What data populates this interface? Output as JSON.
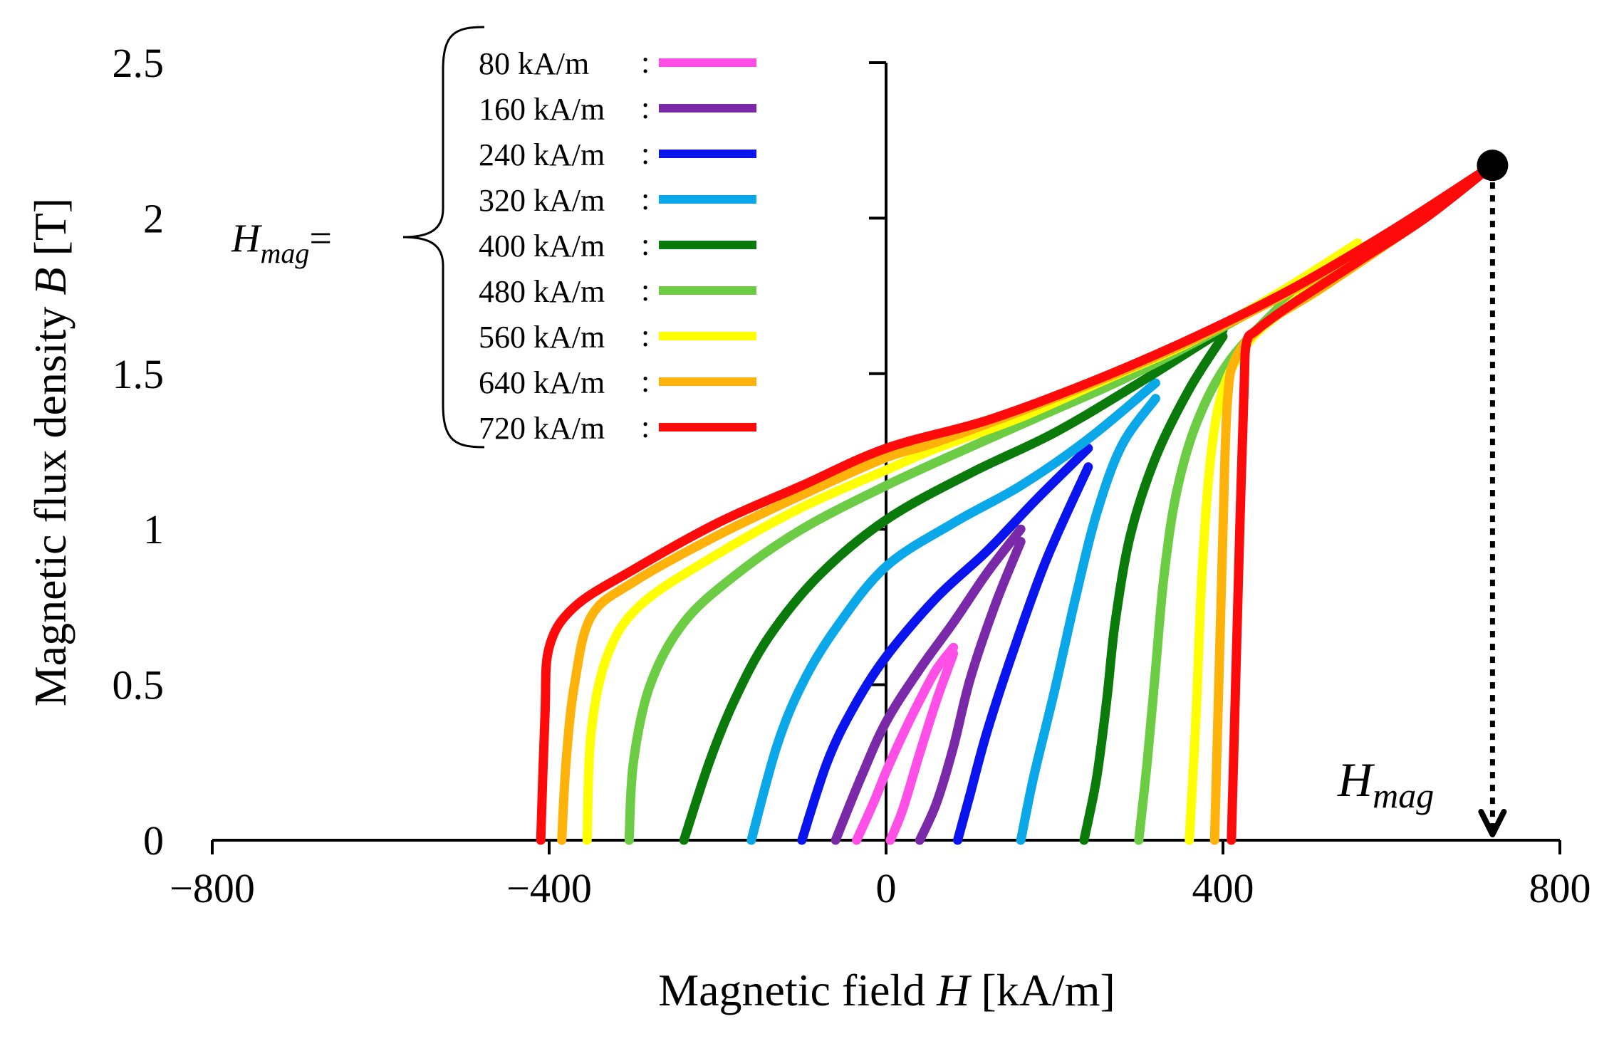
{
  "chart_data": {
    "type": "line",
    "xlabel_prefix": "Magnetic field ",
    "xlabel_var": "H",
    "xlabel_unit": " [kA/m]",
    "ylabel_prefix": "Magnetic flux density ",
    "ylabel_var": "B",
    "ylabel_unit": " [T]",
    "xlim": [
      -800,
      800
    ],
    "ylim": [
      0,
      2.5
    ],
    "xticks": [
      -800,
      -400,
      0,
      400,
      800
    ],
    "xtick_labels": [
      "−800",
      "−400",
      "0",
      "400",
      "800"
    ],
    "yticks": [
      0,
      0.5,
      1,
      1.5,
      2,
      2.5
    ],
    "ytick_labels": [
      "0",
      "0.5",
      "1",
      "1.5",
      "2",
      "2.5"
    ],
    "legend_title_base": "H",
    "legend_title_sub": "mag",
    "legend_title_suffix": "=",
    "annotation_base": "H",
    "annotation_sub": "mag",
    "annotation_point": {
      "x": 720,
      "y": 2.17
    },
    "series": [
      {
        "name": "80 kA/m",
        "sep": ":",
        "color": "#ff4fe6",
        "descending": [
          [
            80,
            0.62
          ],
          [
            60,
            0.55
          ],
          [
            40,
            0.45
          ],
          [
            20,
            0.34
          ],
          [
            0,
            0.22
          ],
          [
            -15,
            0.12
          ],
          [
            -35,
            0
          ]
        ],
        "ascending": [
          [
            5,
            0
          ],
          [
            20,
            0.1
          ],
          [
            40,
            0.28
          ],
          [
            60,
            0.45
          ],
          [
            80,
            0.6
          ]
        ]
      },
      {
        "name": "160 kA/m",
        "sep": ":",
        "color": "#7a2aa8",
        "descending": [
          [
            160,
            1.0
          ],
          [
            120,
            0.86
          ],
          [
            80,
            0.7
          ],
          [
            40,
            0.55
          ],
          [
            0,
            0.38
          ],
          [
            -30,
            0.2
          ],
          [
            -60,
            0
          ]
        ],
        "ascending": [
          [
            40,
            0
          ],
          [
            60,
            0.12
          ],
          [
            80,
            0.3
          ],
          [
            100,
            0.52
          ],
          [
            130,
            0.76
          ],
          [
            160,
            0.96
          ]
        ]
      },
      {
        "name": "240 kA/m",
        "sep": ":",
        "color": "#0a14ee",
        "descending": [
          [
            240,
            1.26
          ],
          [
            180,
            1.1
          ],
          [
            120,
            0.93
          ],
          [
            60,
            0.78
          ],
          [
            0,
            0.59
          ],
          [
            -40,
            0.42
          ],
          [
            -70,
            0.25
          ],
          [
            -100,
            0
          ]
        ],
        "ascending": [
          [
            85,
            0
          ],
          [
            100,
            0.15
          ],
          [
            120,
            0.35
          ],
          [
            150,
            0.6
          ],
          [
            190,
            0.9
          ],
          [
            240,
            1.2
          ]
        ]
      },
      {
        "name": "320 kA/m",
        "sep": ":",
        "color": "#0aa8e8",
        "descending": [
          [
            320,
            1.47
          ],
          [
            240,
            1.29
          ],
          [
            160,
            1.14
          ],
          [
            80,
            1.02
          ],
          [
            0,
            0.88
          ],
          [
            -60,
            0.68
          ],
          [
            -100,
            0.5
          ],
          [
            -130,
            0.3
          ],
          [
            -160,
            0
          ]
        ],
        "ascending": [
          [
            160,
            0
          ],
          [
            175,
            0.2
          ],
          [
            200,
            0.48
          ],
          [
            225,
            0.78
          ],
          [
            250,
            1.05
          ],
          [
            280,
            1.27
          ],
          [
            320,
            1.42
          ]
        ]
      },
      {
        "name": "400 kA/m",
        "sep": ":",
        "color": "#0a7a0a",
        "descending": [
          [
            400,
            1.64
          ],
          [
            300,
            1.47
          ],
          [
            200,
            1.31
          ],
          [
            100,
            1.18
          ],
          [
            0,
            1.03
          ],
          [
            -80,
            0.85
          ],
          [
            -140,
            0.65
          ],
          [
            -180,
            0.45
          ],
          [
            -210,
            0.25
          ],
          [
            -240,
            0
          ]
        ],
        "ascending": [
          [
            235,
            0
          ],
          [
            250,
            0.2
          ],
          [
            262,
            0.45
          ],
          [
            272,
            0.7
          ],
          [
            290,
            0.98
          ],
          [
            320,
            1.23
          ],
          [
            360,
            1.45
          ],
          [
            400,
            1.62
          ]
        ]
      },
      {
        "name": "480 kA/m",
        "sep": ":",
        "color": "#6ccc44",
        "descending": [
          [
            480,
            1.77
          ],
          [
            380,
            1.62
          ],
          [
            280,
            1.48
          ],
          [
            180,
            1.36
          ],
          [
            80,
            1.24
          ],
          [
            0,
            1.14
          ],
          [
            -100,
            1.0
          ],
          [
            -180,
            0.85
          ],
          [
            -240,
            0.7
          ],
          [
            -280,
            0.5
          ],
          [
            -300,
            0.25
          ],
          [
            -305,
            0
          ]
        ],
        "ascending": [
          [
            300,
            0
          ],
          [
            310,
            0.25
          ],
          [
            320,
            0.55
          ],
          [
            330,
            0.85
          ],
          [
            345,
            1.12
          ],
          [
            370,
            1.35
          ],
          [
            410,
            1.55
          ],
          [
            480,
            1.75
          ]
        ]
      },
      {
        "name": "560 kA/m",
        "sep": ":",
        "color": "#ffff00",
        "descending": [
          [
            560,
            1.92
          ],
          [
            460,
            1.75
          ],
          [
            360,
            1.6
          ],
          [
            260,
            1.48
          ],
          [
            160,
            1.36
          ],
          [
            60,
            1.26
          ],
          [
            0,
            1.19
          ],
          [
            -100,
            1.07
          ],
          [
            -200,
            0.92
          ],
          [
            -290,
            0.76
          ],
          [
            -330,
            0.6
          ],
          [
            -350,
            0.35
          ],
          [
            -355,
            0
          ]
        ],
        "ascending": [
          [
            360,
            0
          ],
          [
            368,
            0.4
          ],
          [
            375,
            0.85
          ],
          [
            385,
            1.22
          ],
          [
            400,
            1.45
          ],
          [
            430,
            1.6
          ],
          [
            470,
            1.7
          ],
          [
            560,
            1.9
          ]
        ]
      },
      {
        "name": "640 kA/m",
        "sep": ":",
        "color": "#ffb30a",
        "descending": [
          [
            640,
            2.02
          ],
          [
            530,
            1.84
          ],
          [
            420,
            1.68
          ],
          [
            300,
            1.53
          ],
          [
            180,
            1.4
          ],
          [
            60,
            1.28
          ],
          [
            0,
            1.23
          ],
          [
            -100,
            1.11
          ],
          [
            -200,
            0.98
          ],
          [
            -300,
            0.83
          ],
          [
            -350,
            0.72
          ],
          [
            -370,
            0.5
          ],
          [
            -380,
            0.25
          ],
          [
            -385,
            0
          ]
        ],
        "ascending": [
          [
            390,
            0
          ],
          [
            395,
            0.5
          ],
          [
            400,
            1.0
          ],
          [
            405,
            1.4
          ],
          [
            415,
            1.55
          ],
          [
            450,
            1.66
          ],
          [
            520,
            1.78
          ],
          [
            640,
            2.0
          ]
        ]
      },
      {
        "name": "720 kA/m",
        "sep": ":",
        "color": "#ff0a0a",
        "descending": [
          [
            720,
            2.17
          ],
          [
            600,
            1.96
          ],
          [
            480,
            1.77
          ],
          [
            360,
            1.61
          ],
          [
            240,
            1.47
          ],
          [
            120,
            1.35
          ],
          [
            0,
            1.26
          ],
          [
            -100,
            1.14
          ],
          [
            -200,
            1.02
          ],
          [
            -300,
            0.87
          ],
          [
            -370,
            0.75
          ],
          [
            -400,
            0.62
          ],
          [
            -405,
            0.4
          ],
          [
            -410,
            0
          ]
        ],
        "ascending": [
          [
            410,
            0
          ],
          [
            415,
            0.5
          ],
          [
            420,
            1.0
          ],
          [
            425,
            1.45
          ],
          [
            428,
            1.6
          ],
          [
            440,
            1.64
          ],
          [
            480,
            1.72
          ],
          [
            560,
            1.86
          ],
          [
            640,
            2.0
          ],
          [
            720,
            2.17
          ]
        ]
      }
    ]
  }
}
